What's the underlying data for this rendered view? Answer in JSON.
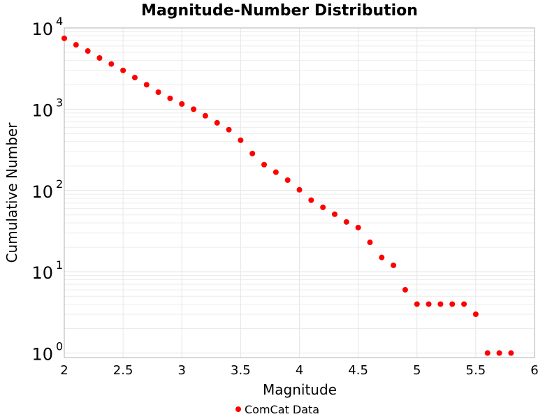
{
  "chart_data": {
    "type": "scatter",
    "title": "Magnitude-Number Distribution",
    "xlabel": "Magnitude",
    "ylabel": "Cumulative Number",
    "xlim": [
      2,
      6
    ],
    "ylim": [
      0.88,
      10000
    ],
    "yscale": "log",
    "grid": true,
    "legend_position": "bottom",
    "x_ticks": [
      "2",
      "2.5",
      "3",
      "3.5",
      "4",
      "4.5",
      "5",
      "5.5",
      "6"
    ],
    "y_ticks": [
      {
        "base": "10",
        "exp": "0"
      },
      {
        "base": "10",
        "exp": "1"
      },
      {
        "base": "10",
        "exp": "2"
      },
      {
        "base": "10",
        "exp": "3"
      },
      {
        "base": "10",
        "exp": "4"
      }
    ],
    "series": [
      {
        "name": "ComCat Data",
        "color": "#ff0000",
        "x": [
          2.0,
          2.1,
          2.2,
          2.3,
          2.4,
          2.5,
          2.6,
          2.7,
          2.8,
          2.9,
          3.0,
          3.1,
          3.2,
          3.3,
          3.4,
          3.5,
          3.6,
          3.7,
          3.8,
          3.9,
          4.0,
          4.1,
          4.2,
          4.3,
          4.4,
          4.5,
          4.6,
          4.7,
          4.8,
          4.9,
          5.0,
          5.1,
          5.2,
          5.3,
          5.4,
          5.5,
          5.6,
          5.7,
          5.8
        ],
        "y": [
          7450,
          6200,
          5200,
          4270,
          3600,
          3000,
          2450,
          2000,
          1620,
          1360,
          1160,
          1000,
          830,
          680,
          560,
          415,
          285,
          208,
          168,
          134,
          102,
          76,
          62,
          51,
          41,
          35,
          23,
          15,
          12,
          6,
          4,
          4,
          4,
          4,
          4,
          3,
          1,
          1,
          1
        ]
      }
    ]
  }
}
